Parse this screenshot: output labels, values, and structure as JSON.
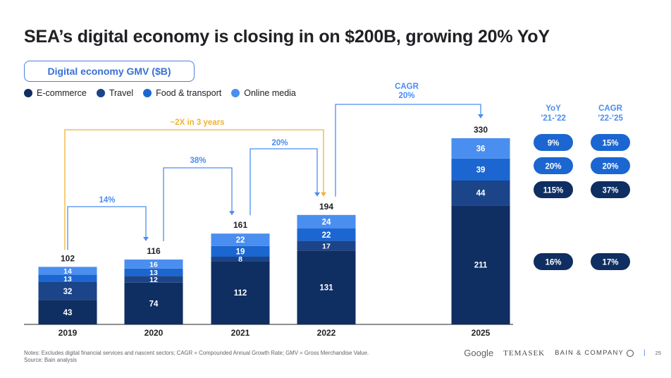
{
  "title": "SEA’s digital economy is closing in on $200B, growing 20% YoY",
  "subtitle": "Digital economy GMV ($B)",
  "colors": {
    "ecommerce": "#0f2e61",
    "travel": "#1c4489",
    "food_transport": "#1b66d1",
    "online_media": "#4a8ef0",
    "arrow_blue": "#4a8ef0",
    "arrow_orange": "#f2b233",
    "pill_light": "#1b66d1",
    "pill_dark": "#0f2e61"
  },
  "chart_data": {
    "type": "bar",
    "stacked": true,
    "categories": [
      "2019",
      "2020",
      "2021",
      "2022",
      "2025"
    ],
    "series": [
      {
        "name": "E-commerce",
        "values": [
          43,
          74,
          112,
          131,
          211
        ]
      },
      {
        "name": "Travel",
        "values": [
          32,
          12,
          8,
          17,
          44
        ]
      },
      {
        "name": "Food & transport",
        "values": [
          13,
          13,
          19,
          22,
          39
        ]
      },
      {
        "name": "Online media",
        "values": [
          14,
          16,
          22,
          24,
          36
        ]
      }
    ],
    "totals": [
      "102",
      "116",
      "161",
      "194",
      "330"
    ],
    "legend_position": "top-left",
    "annotations": {
      "growth_2019_2020": "14%",
      "growth_2020_2021": "38%",
      "growth_2021_2022": "20%",
      "doubling": "~2X in 3 years",
      "cagr_label": "CAGR",
      "cagr_value": "20%"
    }
  },
  "growth_table": {
    "yoy_header_line1": "YoY",
    "yoy_header_line2": "’21-’22",
    "cagr_header_line1": "CAGR",
    "cagr_header_line2": "’22-’25",
    "rows": [
      {
        "yoy": "9%",
        "cagr": "15%"
      },
      {
        "yoy": "20%",
        "cagr": "20%"
      },
      {
        "yoy": "115%",
        "cagr": "37%"
      },
      {
        "yoy": "16%",
        "cagr": "17%"
      }
    ]
  },
  "footnote": {
    "notes": "Notes: Excludes digital financial services and nascent sectors; CAGR = Compounded Annual Growth Rate; GMV = Gross Merchandise Value.",
    "source": "Source: Bain analysis"
  },
  "footer": {
    "google": "Google",
    "temasek": "TEMASEK",
    "bain": "BAIN & COMPANY",
    "separator": "|",
    "page": "25"
  }
}
